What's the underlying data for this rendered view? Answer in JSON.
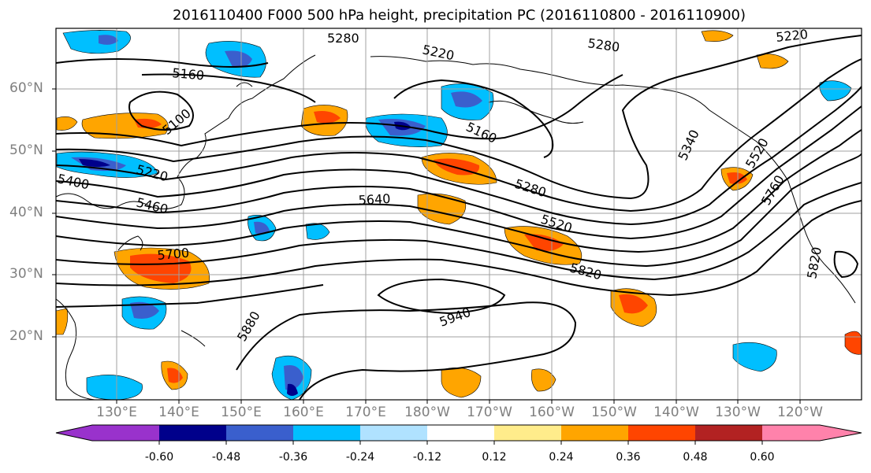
{
  "title": "2016110400 F000 500 hPa height, precipitation PC (2016110800 - 2016110900)",
  "latitude_labels": [
    "60°N",
    "50°N",
    "40°N",
    "30°N",
    "20°N"
  ],
  "longitude_labels": [
    "130°E",
    "140°E",
    "150°E",
    "160°E",
    "170°E",
    "180°W",
    "170°W",
    "160°W",
    "150°W",
    "140°W",
    "130°W",
    "120°W"
  ],
  "contour_labels": [
    "5280",
    "5220",
    "5280",
    "5220",
    "5160",
    "5100",
    "5160",
    "5220",
    "5400",
    "5460",
    "5640",
    "5280",
    "5340",
    "5520",
    "5520",
    "5700",
    "5760",
    "5820",
    "5940",
    "5880",
    "5820"
  ],
  "colorbar": {
    "tick_labels": [
      "-0.60",
      "-0.48",
      "-0.36",
      "-0.24",
      "-0.12",
      "0.12",
      "0.24",
      "0.36",
      "0.48",
      "0.60"
    ],
    "colors": [
      "#9932cc",
      "#00008b",
      "#3a5fcd",
      "#00bfff",
      "#b0e2ff",
      "#ffffff",
      "#ffec8b",
      "#ffa500",
      "#ff4500",
      "#b22222",
      "#ff82ab"
    ]
  }
}
